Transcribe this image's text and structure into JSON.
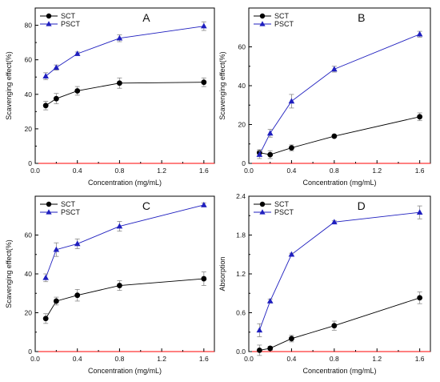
{
  "chart_data": [
    {
      "panel_label": "A",
      "type": "line",
      "x": [
        0.1,
        0.2,
        0.4,
        0.8,
        1.6
      ],
      "xlabel": "Concentration (mg/mL)",
      "ylabel": "Scavenging effect(%)",
      "xlim": [
        0.0,
        1.7
      ],
      "ylim": [
        0,
        90
      ],
      "xticks": [
        "0.0",
        "0.4",
        "0.8",
        "1.2",
        "1.6"
      ],
      "yticks": [
        "0",
        "20",
        "40",
        "60",
        "80"
      ],
      "legend_position": "top-left",
      "series": [
        {
          "name": "SCT",
          "marker": "circle",
          "color": "#000000",
          "values": [
            33.5,
            37.5,
            42.0,
            46.5,
            47.0
          ],
          "errors": [
            2.5,
            3.0,
            2.5,
            3.0,
            2.5
          ]
        },
        {
          "name": "PSCT",
          "marker": "triangle",
          "color": "#1f1fbf",
          "values": [
            50.5,
            55.5,
            63.5,
            72.5,
            79.5
          ],
          "errors": [
            2.0,
            1.5,
            1.0,
            2.0,
            2.5
          ]
        }
      ]
    },
    {
      "panel_label": "B",
      "type": "line",
      "x": [
        0.1,
        0.2,
        0.4,
        0.8,
        1.6
      ],
      "xlabel": "Concentration (mg/mL)",
      "ylabel": "Scavenging effect(%)",
      "xlim": [
        0.0,
        1.7
      ],
      "ylim": [
        0,
        80
      ],
      "xticks": [
        "0.0",
        "0.4",
        "0.8",
        "1.2",
        "1.6"
      ],
      "yticks": [
        "0",
        "20",
        "40",
        "60"
      ],
      "legend_position": "top-left",
      "series": [
        {
          "name": "SCT",
          "marker": "circle",
          "color": "#000000",
          "values": [
            5.5,
            4.5,
            8.0,
            14.0,
            24.0
          ],
          "errors": [
            1.5,
            2.0,
            1.5,
            0.5,
            2.0
          ]
        },
        {
          "name": "PSCT",
          "marker": "triangle",
          "color": "#1f1fbf",
          "values": [
            4.5,
            15.5,
            32.0,
            48.5,
            66.5
          ],
          "errors": [
            2.0,
            2.0,
            3.5,
            1.5,
            1.5
          ]
        }
      ]
    },
    {
      "panel_label": "C",
      "type": "line",
      "x": [
        0.1,
        0.2,
        0.4,
        0.8,
        1.6
      ],
      "xlabel": "Concentration (mg/mL)",
      "ylabel": "Scavenging effect(%)",
      "xlim": [
        0.0,
        1.7
      ],
      "ylim": [
        0,
        80
      ],
      "xticks": [
        "0.0",
        "0.4",
        "0.8",
        "1.2",
        "1.6"
      ],
      "yticks": [
        "0",
        "20",
        "40",
        "60"
      ],
      "legend_position": "top-left",
      "series": [
        {
          "name": "SCT",
          "marker": "circle",
          "color": "#000000",
          "values": [
            17.0,
            26.0,
            29.0,
            34.0,
            37.5
          ],
          "errors": [
            2.5,
            2.0,
            3.0,
            2.5,
            3.5
          ]
        },
        {
          "name": "PSCT",
          "marker": "triangle",
          "color": "#1f1fbf",
          "values": [
            38.0,
            52.5,
            55.5,
            64.5,
            75.5
          ],
          "errors": [
            2.0,
            3.5,
            2.5,
            2.5,
            1.0
          ]
        }
      ]
    },
    {
      "panel_label": "D",
      "type": "line",
      "x": [
        0.1,
        0.2,
        0.4,
        0.8,
        1.6
      ],
      "xlabel": "Concentration (mg/mL)",
      "ylabel": "Absorption",
      "xlim": [
        0.0,
        1.7
      ],
      "ylim": [
        0.0,
        2.4
      ],
      "xticks": [
        "0.0",
        "0.4",
        "0.8",
        "1.2",
        "1.6"
      ],
      "yticks": [
        "0.0",
        "0.6",
        "1.2",
        "1.8",
        "2.4"
      ],
      "legend_position": "top-left",
      "series": [
        {
          "name": "SCT",
          "marker": "circle",
          "color": "#000000",
          "values": [
            0.02,
            0.05,
            0.2,
            0.4,
            0.83
          ],
          "errors": [
            0.08,
            0.03,
            0.05,
            0.07,
            0.09
          ]
        },
        {
          "name": "PSCT",
          "marker": "triangle",
          "color": "#1f1fbf",
          "values": [
            0.33,
            0.78,
            1.5,
            2.0,
            2.15
          ],
          "errors": [
            0.1,
            0.03,
            0.02,
            0.02,
            0.1
          ]
        }
      ]
    }
  ],
  "colors": {
    "axis": "#000000",
    "zero_line": "#ff0000",
    "error_bar": "#888888"
  }
}
